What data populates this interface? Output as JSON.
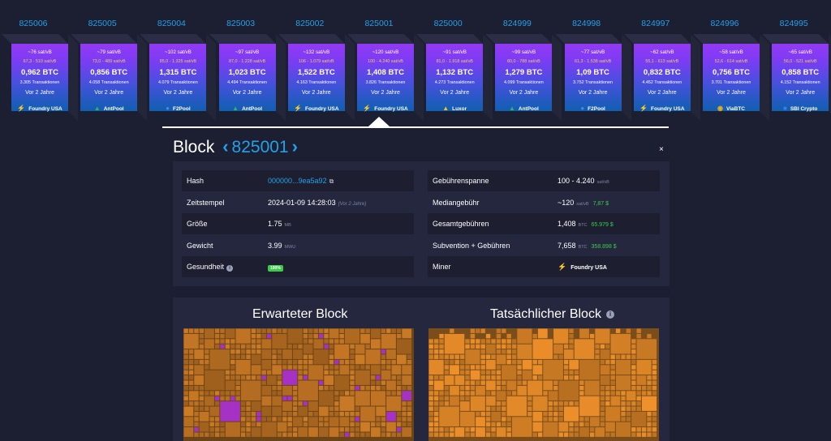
{
  "blocks": [
    {
      "height": "825006",
      "median_fee": "~76 sat/vB",
      "fee_span": "67,3 - 510 sat/vB",
      "total_fees": "0,962 BTC",
      "tx_count": "3.305 Transaktionen",
      "time_ago": "Vor 2 Jahre",
      "pool": "Foundry USA",
      "pool_icon": "foundry-icon"
    },
    {
      "height": "825005",
      "median_fee": "~79 sat/vB",
      "fee_span": "73,0 - 489 sat/vB",
      "total_fees": "0,856 BTC",
      "tx_count": "4.058 Transaktionen",
      "time_ago": "Vor 2 Jahre",
      "pool": "AntPool",
      "pool_icon": "antpool-icon"
    },
    {
      "height": "825004",
      "median_fee": "~102 sat/vB",
      "fee_span": "85,0 - 1.325 sat/vB",
      "total_fees": "1,315 BTC",
      "tx_count": "4.079 Transaktionen",
      "time_ago": "Vor 2 Jahre",
      "pool": "F2Pool",
      "pool_icon": "f2pool-icon"
    },
    {
      "height": "825003",
      "median_fee": "~97 sat/vB",
      "fee_span": "87,0 - 1.228 sat/vB",
      "total_fees": "1,023 BTC",
      "tx_count": "4.494 Transaktionen",
      "time_ago": "Vor 2 Jahre",
      "pool": "AntPool",
      "pool_icon": "antpool-icon"
    },
    {
      "height": "825002",
      "median_fee": "~132 sat/vB",
      "fee_span": "106 - 1.079 sat/vB",
      "total_fees": "1,522 BTC",
      "tx_count": "4.163 Transaktionen",
      "time_ago": "Vor 2 Jahre",
      "pool": "Foundry USA",
      "pool_icon": "foundry-icon"
    },
    {
      "height": "825001",
      "median_fee": "~120 sat/vB",
      "fee_span": "100 - 4.240 sat/vB",
      "total_fees": "1,408 BTC",
      "tx_count": "3.826 Transaktionen",
      "time_ago": "Vor 2 Jahre",
      "pool": "Foundry USA",
      "pool_icon": "foundry-icon"
    },
    {
      "height": "825000",
      "median_fee": "~91 sat/vB",
      "fee_span": "81,0 - 1.918 sat/vB",
      "total_fees": "1,132 BTC",
      "tx_count": "4.273 Transaktionen",
      "time_ago": "Vor 2 Jahre",
      "pool": "Luxor",
      "pool_icon": "luxor-icon"
    },
    {
      "height": "824999",
      "median_fee": "~99 sat/vB",
      "fee_span": "80,0 - 788 sat/vB",
      "total_fees": "1,279 BTC",
      "tx_count": "4.099 Transaktionen",
      "time_ago": "Vor 2 Jahre",
      "pool": "AntPool",
      "pool_icon": "antpool-icon"
    },
    {
      "height": "824998",
      "median_fee": "~77 sat/vB",
      "fee_span": "61,3 - 1.538 sat/vB",
      "total_fees": "1,09 BTC",
      "tx_count": "3.752 Transaktionen",
      "time_ago": "Vor 2 Jahre",
      "pool": "F2Pool",
      "pool_icon": "f2pool-icon"
    },
    {
      "height": "824997",
      "median_fee": "~62 sat/vB",
      "fee_span": "55,1 - 613 sat/vB",
      "total_fees": "0,832 BTC",
      "tx_count": "4.452 Transaktionen",
      "time_ago": "Vor 2 Jahre",
      "pool": "Foundry USA",
      "pool_icon": "foundry-icon"
    },
    {
      "height": "824996",
      "median_fee": "~58 sat/vB",
      "fee_span": "52,6 - 614 sat/vB",
      "total_fees": "0,756 BTC",
      "tx_count": "3.701 Transaktionen",
      "time_ago": "Vor 2 Jahre",
      "pool": "ViaBTC",
      "pool_icon": "viabtc-icon"
    },
    {
      "height": "824995",
      "median_fee": "~65 sat/vB",
      "fee_span": "56,0 - 521 sat/vB",
      "total_fees": "0,858 BTC",
      "tx_count": "4.152 Transaktionen",
      "time_ago": "Vor 2 Jahre",
      "pool": "SBI Crypto",
      "pool_icon": "sbicrypto-icon"
    }
  ],
  "header": {
    "title": "Block",
    "height": "825001",
    "prev_icon": "chevron-left-icon",
    "next_icon": "chevron-right-icon",
    "close_glyph": "×"
  },
  "details": {
    "left": [
      {
        "label": "Hash",
        "value": "000000...9ea5a92",
        "icon": "copy-icon"
      },
      {
        "label": "Zeitstempel",
        "value": "2024-01-09 14:28:03",
        "sub": "(Vor 2 Jahre)"
      },
      {
        "label": "Größe",
        "value": "1.75",
        "unit": "MB"
      },
      {
        "label": "Gewicht",
        "value": "3.99",
        "unit": "MWU"
      },
      {
        "label": "Gesundheit",
        "value": "100%",
        "icon": "info-icon"
      }
    ],
    "right": [
      {
        "label": "Gebührenspanne",
        "value": "100 - 4.240",
        "unit": "sat/vB"
      },
      {
        "label": "Mediangebühr",
        "value": "~120",
        "unit": "sat/vB",
        "fiat": "7,87 $"
      },
      {
        "label": "Gesamtgebühren",
        "value": "1,408",
        "unit": "BTC",
        "fiat": "65.979 $"
      },
      {
        "label": "Subvention + Gebühren",
        "value": "7,658",
        "unit": "BTC",
        "fiat": "358.898 $"
      },
      {
        "label": "Miner",
        "value": "Foundry USA",
        "icon": "foundry-icon"
      }
    ]
  },
  "compare": {
    "expected_title": "Erwarteter Block",
    "actual_title": "Tatsächlicher Block",
    "info_icon": "info-icon"
  },
  "colors": {
    "accent": "#24a1e8",
    "fee_tile": "#c97a20",
    "added_tile": "#a532c4",
    "green": "#3bcc49"
  }
}
